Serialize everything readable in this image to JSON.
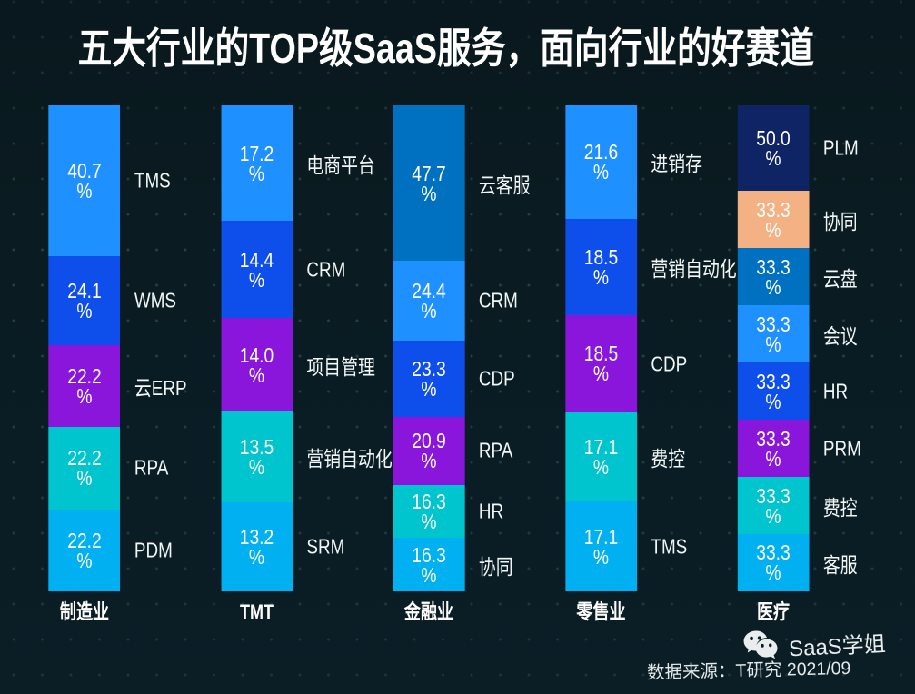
{
  "page": {
    "title": "五大行业的TOP级SaaS服务，面向行业的好赛道",
    "source_note": "数据来源：T研究 2021/09",
    "watermark": {
      "name": "SaaS学姐",
      "icon": "wechat-icon"
    }
  },
  "colors": {
    "background": "#0a1c22",
    "title_text": "#ffffff",
    "bar_value_text": "#ffffff",
    "segment_label_text": "#f2f6f6",
    "source_text": "#e4eaea",
    "watermark_text": "#e9eded"
  },
  "chart_data": {
    "type": "bar",
    "variant": "stacked-normalized",
    "orientation": "vertical",
    "unit": "%",
    "legend": "none",
    "grid": "off",
    "title": "五大行业的TOP级SaaS服务，面向行业的好赛道",
    "categories": [
      "制造业",
      "TMT",
      "金融业",
      "零售业",
      "医疗"
    ],
    "palette": [
      "#0e2464",
      "#f4b183",
      "#0070c0",
      "#1e90ff",
      "#0e4feb",
      "#8a16db",
      "#00c4ce",
      "#00b0f0"
    ],
    "columns": [
      {
        "category": "制造业",
        "segments": [
          {
            "label": "TMS",
            "value": 40.7,
            "color": "#1e90ff"
          },
          {
            "label": "WMS",
            "value": 24.1,
            "color": "#0e4feb"
          },
          {
            "label": "云ERP",
            "value": 22.2,
            "color": "#8a16db"
          },
          {
            "label": "RPA",
            "value": 22.2,
            "color": "#00c4ce"
          },
          {
            "label": "PDM",
            "value": 22.2,
            "color": "#00b0f0"
          }
        ]
      },
      {
        "category": "TMT",
        "segments": [
          {
            "label": "电商平台",
            "value": 17.2,
            "color": "#1e90ff"
          },
          {
            "label": "CRM",
            "value": 14.4,
            "color": "#0e4feb"
          },
          {
            "label": "项目管理",
            "value": 14.0,
            "color": "#8a16db"
          },
          {
            "label": "营销自动化",
            "value": 13.5,
            "color": "#00c4ce"
          },
          {
            "label": "SRM",
            "value": 13.2,
            "color": "#00b0f0"
          }
        ]
      },
      {
        "category": "金融业",
        "segments": [
          {
            "label": "云客服",
            "value": 47.7,
            "color": "#0070c0"
          },
          {
            "label": "CRM",
            "value": 24.4,
            "color": "#1e90ff"
          },
          {
            "label": "CDP",
            "value": 23.3,
            "color": "#0e4feb"
          },
          {
            "label": "RPA",
            "value": 20.9,
            "color": "#8a16db"
          },
          {
            "label": "HR",
            "value": 16.3,
            "color": "#00c4ce"
          },
          {
            "label": "协同",
            "value": 16.3,
            "color": "#00b0f0"
          }
        ]
      },
      {
        "category": "零售业",
        "segments": [
          {
            "label": "进销存",
            "value": 21.6,
            "color": "#1e90ff"
          },
          {
            "label": "营销自动化",
            "value": 18.5,
            "color": "#0e4feb"
          },
          {
            "label": "CDP",
            "value": 18.5,
            "color": "#8a16db"
          },
          {
            "label": "费控",
            "value": 17.1,
            "color": "#00c4ce"
          },
          {
            "label": "TMS",
            "value": 17.1,
            "color": "#00b0f0"
          }
        ]
      },
      {
        "category": "医疗",
        "segments": [
          {
            "label": "PLM",
            "value": 50.0,
            "color": "#0e2464"
          },
          {
            "label": "协同",
            "value": 33.3,
            "color": "#f4b183"
          },
          {
            "label": "云盘",
            "value": 33.3,
            "color": "#0070c0"
          },
          {
            "label": "会议",
            "value": 33.3,
            "color": "#1e90ff"
          },
          {
            "label": "HR",
            "value": 33.3,
            "color": "#0e4feb"
          },
          {
            "label": "PRM",
            "value": 33.3,
            "color": "#8a16db"
          },
          {
            "label": "费控",
            "value": 33.3,
            "color": "#00c4ce"
          },
          {
            "label": "客服",
            "value": 33.3,
            "color": "#00b0f0"
          }
        ]
      }
    ]
  }
}
